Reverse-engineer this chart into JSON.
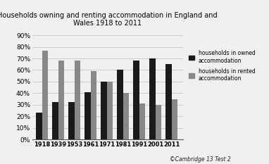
{
  "title": "Households owning and renting accommodation in England and\nWales 1918 to 2011",
  "years": [
    "1918",
    "1939",
    "1953",
    "1961",
    "1971",
    "1981",
    "1991",
    "2001",
    "2011"
  ],
  "owned": [
    23,
    32,
    32,
    41,
    50,
    60,
    68,
    70,
    65
  ],
  "rented": [
    77,
    68,
    68,
    59,
    50,
    40,
    31,
    30,
    35
  ],
  "color_owned": "#1a1a1a",
  "color_rented": "#888888",
  "ylabel_ticks": [
    "0%",
    "10%",
    "20%",
    "30%",
    "40%",
    "50%",
    "60%",
    "70%",
    "80%",
    "90%"
  ],
  "yticks": [
    0,
    10,
    20,
    30,
    40,
    50,
    60,
    70,
    80,
    90
  ],
  "legend_owned": "households in owned\naccommodation",
  "legend_rented": "households in rented\naccommodation",
  "watermark": "©Cambridge 13 Test 2",
  "background_color": "#f0f0f0",
  "plot_bg_color": "#f0f0f0",
  "fig_width": 3.82,
  "fig_height": 2.33,
  "bar_width": 0.38
}
